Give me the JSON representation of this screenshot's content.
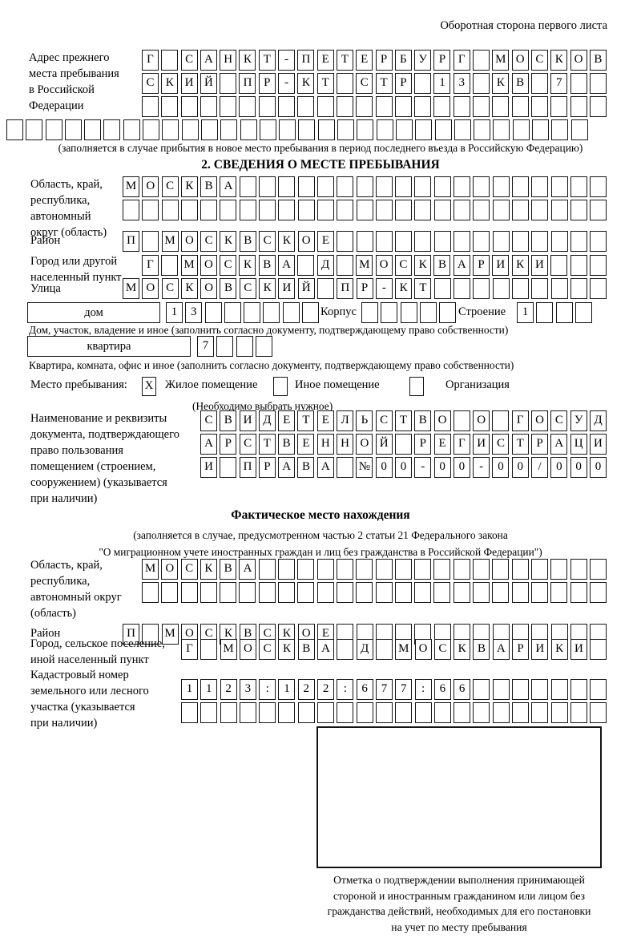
{
  "page": {
    "corner_note": "Оборотная сторона первого листа"
  },
  "prev_address": {
    "label": "Адрес прежнего\nместа пребывания\nв Российской\nФедерации",
    "row1": "Г САНКТ-ПЕТЕРБУРГ МОСКОВ",
    "row2": "СКИЙ ПР-КТ СТР 13 КВ 7  ",
    "row3": "                        ",
    "row4": "                              ",
    "note": "(заполняется в случае прибытия в новое место пребывания в период последнего въезда в Российскую Федерацию)"
  },
  "section2": {
    "title": "2. СВЕДЕНИЯ О МЕСТЕ ПРЕБЫВАНИЯ",
    "region_label": "Область, край,\nреспублика,\nавтономный\nокруг (область)",
    "region_row1": "МОСКВА                   ",
    "region_row2": "                         ",
    "district_label": "Район",
    "district_row": "П МОСКВСКОЕ              ",
    "city_label": "Город или другой\nнаселенный пункт",
    "city_row": "Г МОСКВА Д МОСКВАРИКИ   ",
    "street_label": "Улица",
    "street_row": "МОСКОВСКИЙ ПР-КТ         ",
    "house_box": "дом",
    "house_cells": "13      ",
    "korpus_label": "Корпус",
    "korpus_cells": "     ",
    "stroenie_label": "Строение",
    "stroenie_cells": "1   ",
    "house_note": "Дом, участок, владение и иное (заполнить согласно документу, подтверждающему право собственности)",
    "apartment_box": "квартира",
    "apartment_cells": "7   ",
    "apartment_note": "Квартира, комната, офис и иное (заполнить согласно документу, подтверждающему право собственности)",
    "stay_label": "Место пребывания:",
    "stay_opt1_mark": "X",
    "stay_opt1": "Жилое помещение",
    "stay_opt2_mark": "",
    "stay_opt2": "Иное помещение",
    "stay_opt3_mark": "",
    "stay_opt3": "Организация",
    "stay_note": "(Необходимо выбрать нужное)",
    "doc_label": "Наименование и реквизиты\nдокумента, подтверждающего\nправо пользования\nпомещением (строением,\nсооружением) (указывается\nпри наличии)",
    "doc_row1": "СВИДЕТЕЛЬСТВО О ГОСУД",
    "doc_row2": "АРСТВЕННОЙ РЕГИСТРАЦИ",
    "doc_row3": "И ПРАВА №00-00-00/000"
  },
  "fact": {
    "title": "Фактическое место нахождения",
    "note": "(заполняется в случае, предусмотренном частью 2 статьи 21 Федерального закона\n\"О миграционном учете иностранных граждан и лиц без гражданства в Российской Федерации\")",
    "region_label": "Область, край,\nреспублика,\nавтономный округ\n(область)",
    "region_row1": "МОСКВА                  ",
    "region_row2": "                        ",
    "district_label": "Район",
    "district_row": "П МОСКВСКОЕ              ",
    "city_label": "Город, сельское поселение,\nиной населенный пункт",
    "city_row": "Г МОСКВА Д МОСКВАРИКИ ",
    "cadastre_label": "Кадастровый номер\nземельного или лесного\nучастка (указывается\nпри наличии)",
    "cadastre_row1": "1123:122:677:66       ",
    "cadastre_row2": "                      "
  },
  "stamp": {
    "caption": "Отметка о подтверждении выполнения принимающей\nстороной и иностранным гражданином или лицом без\nгражданства действий, необходимых для его постановки\nна учет по месту пребывания"
  }
}
